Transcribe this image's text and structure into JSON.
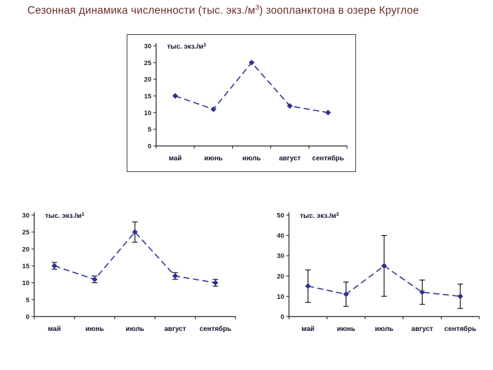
{
  "title": {
    "pre": "Сезонная динамика численности (тыс. экз./м",
    "sup": "3",
    "post": ") зоопланктона в озере Круглое"
  },
  "unit": {
    "pre": "тыс. экз./м",
    "sup": "3"
  },
  "colors": {
    "series": "#2e3192",
    "axis": "#1a1a1a",
    "error_bar": "#111111"
  },
  "chart_data": [
    {
      "type": "line",
      "name": "zooplankton-abundance-top",
      "title": "",
      "ylabel": "тыс. экз./м3",
      "categories": [
        "май",
        "июнь",
        "июль",
        "август",
        "сентябрь"
      ],
      "values": [
        15,
        11,
        25,
        12,
        10
      ],
      "errors": null,
      "ylim": [
        0,
        30
      ],
      "yticks": [
        0,
        5,
        10,
        15,
        20,
        25,
        30
      ],
      "line_style": "dashed",
      "marker": "diamond",
      "grid": false,
      "legend": "none"
    },
    {
      "type": "line",
      "name": "zooplankton-abundance-small-error-bars",
      "title": "",
      "ylabel": "тыс. экз./м3",
      "categories": [
        "май",
        "июнь",
        "июль",
        "август",
        "сентябрь"
      ],
      "values": [
        15,
        11,
        25,
        12,
        10
      ],
      "errors": [
        1,
        1,
        3,
        1,
        1
      ],
      "ylim": [
        0,
        30
      ],
      "yticks": [
        0,
        5,
        10,
        15,
        20,
        25,
        30
      ],
      "line_style": "dashed",
      "marker": "diamond",
      "grid": false,
      "legend": "none"
    },
    {
      "type": "line",
      "name": "zooplankton-abundance-large-error-bars",
      "title": "",
      "ylabel": "тыс. экз./м3",
      "categories": [
        "май",
        "июнь",
        "июль",
        "август",
        "сентябрь"
      ],
      "values": [
        15,
        11,
        25,
        12,
        10
      ],
      "errors": [
        8,
        6,
        15,
        6,
        6
      ],
      "ylim": [
        0,
        50
      ],
      "yticks": [
        0,
        10,
        20,
        30,
        40,
        50
      ],
      "line_style": "dashed",
      "marker": "diamond",
      "grid": false,
      "legend": "none"
    }
  ]
}
